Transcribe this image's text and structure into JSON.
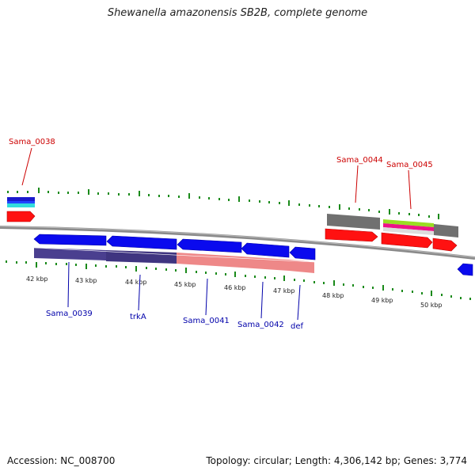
{
  "title": "Shewanella amazonensis SB2B, complete genome",
  "footer": {
    "accession": "Accession: NC_008700",
    "stats": "Topology: circular; Length: 4,306,142 bp; Genes: 3,774"
  },
  "scale_labels": [
    "42 kbp",
    "43 kbp",
    "44 kbp",
    "45 kbp",
    "46 kbp",
    "47 kbp",
    "48 kbp",
    "49 kbp",
    "50 kbp"
  ],
  "gene_labels_top": [
    "Sama_0038",
    "Sama_0044",
    "Sama_0045"
  ],
  "gene_labels_bottom": [
    "Sama_0039",
    "trkA",
    "Sama_0041",
    "Sama_0042",
    "def"
  ],
  "colors": {
    "cds": "#0a0aee",
    "top_track_gene": "#ff1111",
    "grey_feature": "#707070",
    "backbone": "#8a8a8a",
    "tick": "#1a8a1a",
    "label_top": "#cc0000",
    "label_bottom": "#0000aa"
  }
}
